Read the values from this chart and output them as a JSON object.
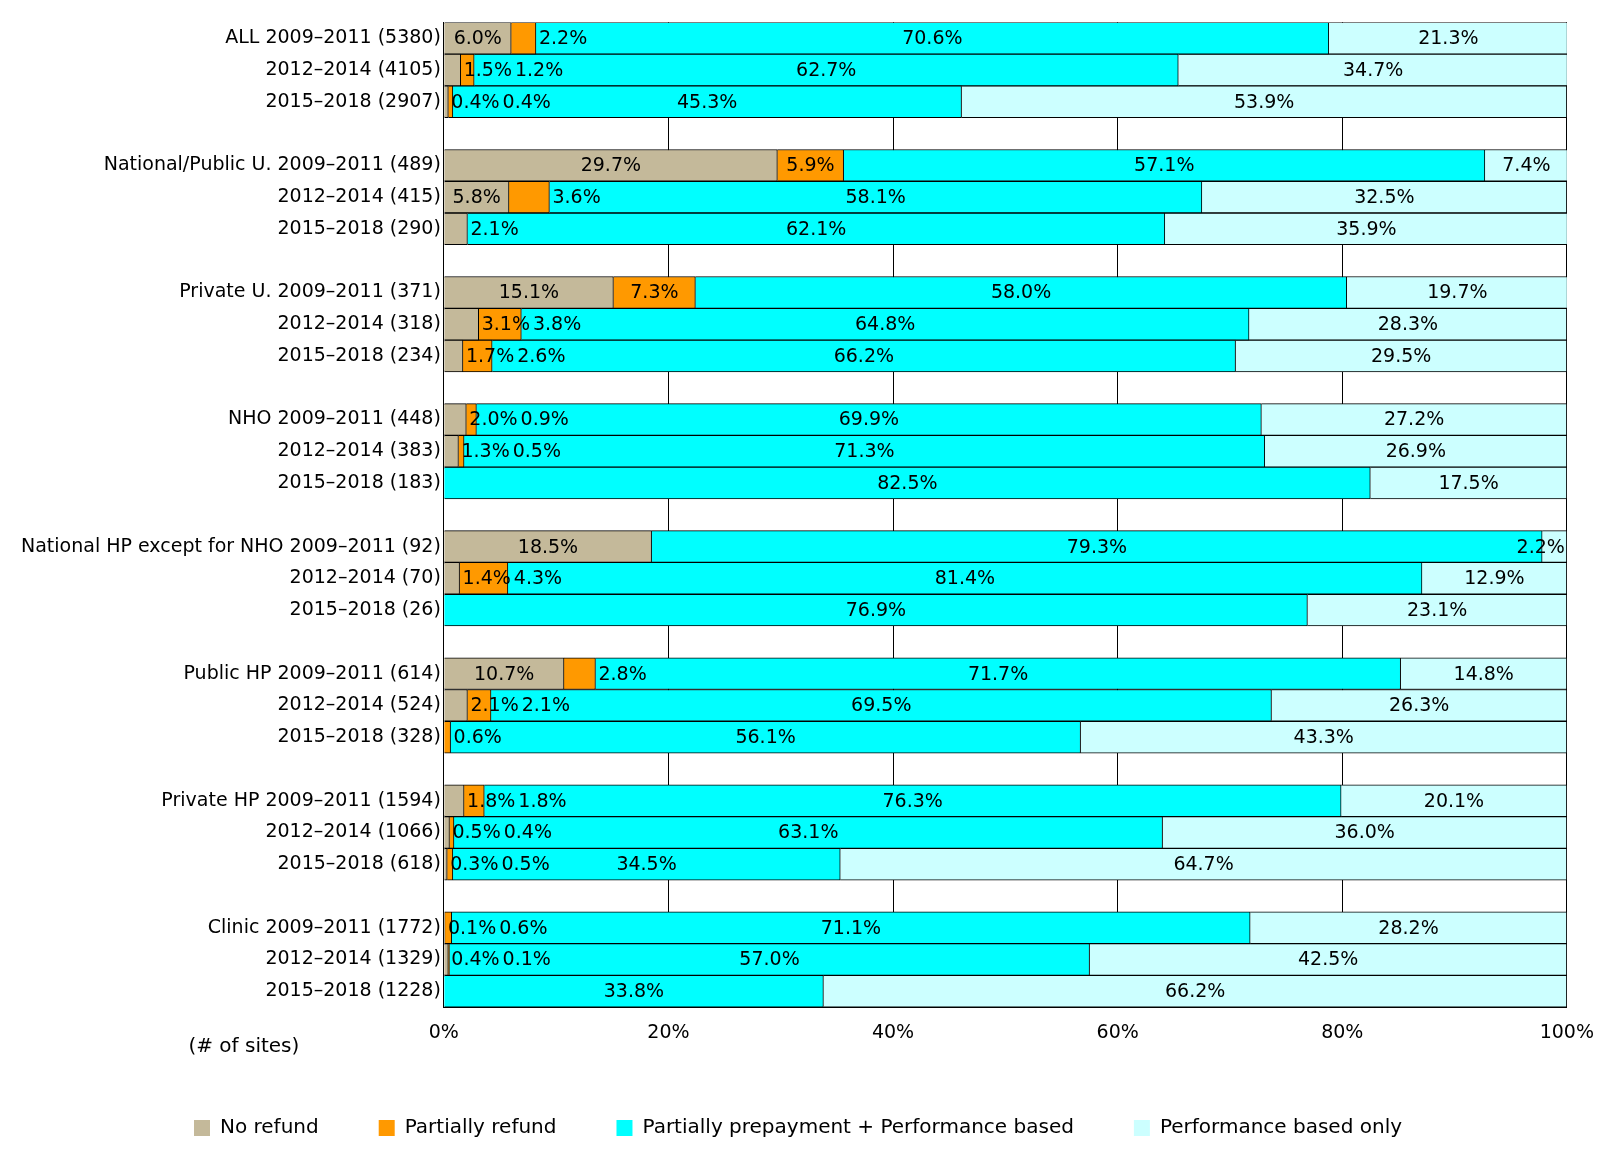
{
  "chart_data": {
    "type": "bar",
    "orientation": "horizontal",
    "stacked": true,
    "grid": "x",
    "legend": "bottom",
    "categories": [
      "ALL 2009–2011 (5380)",
      "2012–2014 (4105)",
      "2015–2018 (2907)",
      null,
      "National/Public U. 2009–2011 (489)",
      "2012–2014 (415)",
      "2015–2018 (290)",
      null,
      "Private U. 2009–2011 (371)",
      "2012–2014 (318)",
      "2015–2018 (234)",
      null,
      "NHO 2009–2011 (448)",
      "2012–2014 (383)",
      "2015–2018 (183)",
      null,
      "National HP except for NHO 2009–2011 (92)",
      "2012–2014 (70)",
      "2015–2018 (26)",
      null,
      "Public HP 2009–2011 (614)",
      "2012–2014 (524)",
      "2015–2018 (328)",
      null,
      "Private HP 2009–2011 (1594)",
      "2012–2014 (1066)",
      "2015–2018 (618)",
      null,
      "Clinic 2009–2011 (1772)",
      "2012–2014 (1329)",
      "2015–2018 (1228)"
    ],
    "series": [
      {
        "name": "No refund",
        "color": "#c4b99a",
        "values": [
          6.0,
          1.5,
          0.4,
          null,
          29.7,
          5.8,
          2.1,
          null,
          15.1,
          3.1,
          1.7,
          null,
          2.0,
          1.3,
          null,
          null,
          18.5,
          1.4,
          null,
          null,
          10.7,
          2.1,
          null,
          null,
          1.8,
          0.5,
          0.3,
          null,
          0.1,
          0.4,
          null
        ],
        "value_labels": [
          "6.0%",
          "1.5%",
          "0.4%",
          null,
          "29.7%",
          "5.8%",
          "2.1%",
          null,
          "15.1%",
          "3.1%",
          "1.7%",
          null,
          "2.0%",
          "1.3%",
          null,
          null,
          "18.5%",
          "1.4%",
          null,
          null,
          "10.7%",
          "2.1%",
          null,
          null,
          "1.8%",
          "0.5%",
          "0.3%",
          null,
          "0.1%",
          "0.4%",
          null
        ]
      },
      {
        "name": "Partially refund",
        "color": "#ff9900",
        "values": [
          2.2,
          1.2,
          0.4,
          null,
          5.9,
          3.6,
          null,
          null,
          7.3,
          3.8,
          2.6,
          null,
          0.9,
          0.5,
          null,
          null,
          null,
          4.3,
          null,
          null,
          2.8,
          2.1,
          0.6,
          null,
          1.8,
          0.4,
          0.5,
          null,
          0.6,
          0.1,
          null
        ],
        "value_labels": [
          "2.2%",
          "1.2%",
          "0.4%",
          null,
          "5.9%",
          "3.6%",
          null,
          null,
          "7.3%",
          "3.8%",
          "2.6%",
          null,
          "0.9%",
          "0.5%",
          null,
          null,
          null,
          "4.3%",
          null,
          null,
          "2.8%",
          "2.1%",
          "0.6%",
          null,
          "1.8%",
          "0.4%",
          "0.5%",
          null,
          "0.6%",
          "0.1%",
          null
        ]
      },
      {
        "name": "Partially prepayment + Performance based",
        "color": "#00ffff",
        "values": [
          70.6,
          62.7,
          45.3,
          null,
          57.1,
          58.1,
          62.1,
          null,
          58.0,
          64.8,
          66.2,
          null,
          69.9,
          71.3,
          82.5,
          null,
          79.3,
          81.4,
          76.9,
          null,
          71.7,
          69.5,
          56.1,
          null,
          76.3,
          63.1,
          34.5,
          null,
          71.1,
          57.0,
          33.8
        ],
        "value_labels": [
          "70.6%",
          "62.7%",
          "45.3%",
          null,
          "57.1%",
          "58.1%",
          "62.1%",
          null,
          "58.0%",
          "64.8%",
          "66.2%",
          null,
          "69.9%",
          "71.3%",
          "82.5%",
          null,
          "79.3%",
          "81.4%",
          "76.9%",
          null,
          "71.7%",
          "69.5%",
          "56.1%",
          null,
          "76.3%",
          "63.1%",
          "34.5%",
          null,
          "71.1%",
          "57.0%",
          "33.8%"
        ]
      },
      {
        "name": "Performance based only",
        "color": "#ccffff",
        "values": [
          21.3,
          34.7,
          53.9,
          null,
          7.4,
          32.5,
          35.9,
          null,
          19.7,
          28.3,
          29.5,
          null,
          27.2,
          26.9,
          17.5,
          null,
          2.2,
          12.9,
          23.1,
          null,
          14.8,
          26.3,
          43.3,
          null,
          20.1,
          36.0,
          64.7,
          null,
          28.2,
          42.5,
          66.2
        ],
        "value_labels": [
          "21.3%",
          "34.7%",
          "53.9%",
          null,
          "7.4%",
          "32.5%",
          "35.9%",
          null,
          "19.7%",
          "28.3%",
          "29.5%",
          null,
          "27.2%",
          "26.9%",
          "17.5%",
          null,
          "2.2%",
          "12.9%",
          "23.1%",
          null,
          "14.8%",
          "26.3%",
          "43.3%",
          null,
          "20.1%",
          "36.0%",
          "64.7%",
          null,
          "28.2%",
          "42.5%",
          "66.2%"
        ]
      }
    ],
    "xlim": [
      0,
      100
    ],
    "xticks": [
      {
        "value": 0,
        "label": "0%"
      },
      {
        "value": 20,
        "label": "20%"
      },
      {
        "value": 40,
        "label": "40%"
      },
      {
        "value": 60,
        "label": "60%"
      },
      {
        "value": 80,
        "label": "80%"
      },
      {
        "value": 100,
        "label": "100%"
      }
    ],
    "annotations": [
      "(# of sites)"
    ]
  }
}
